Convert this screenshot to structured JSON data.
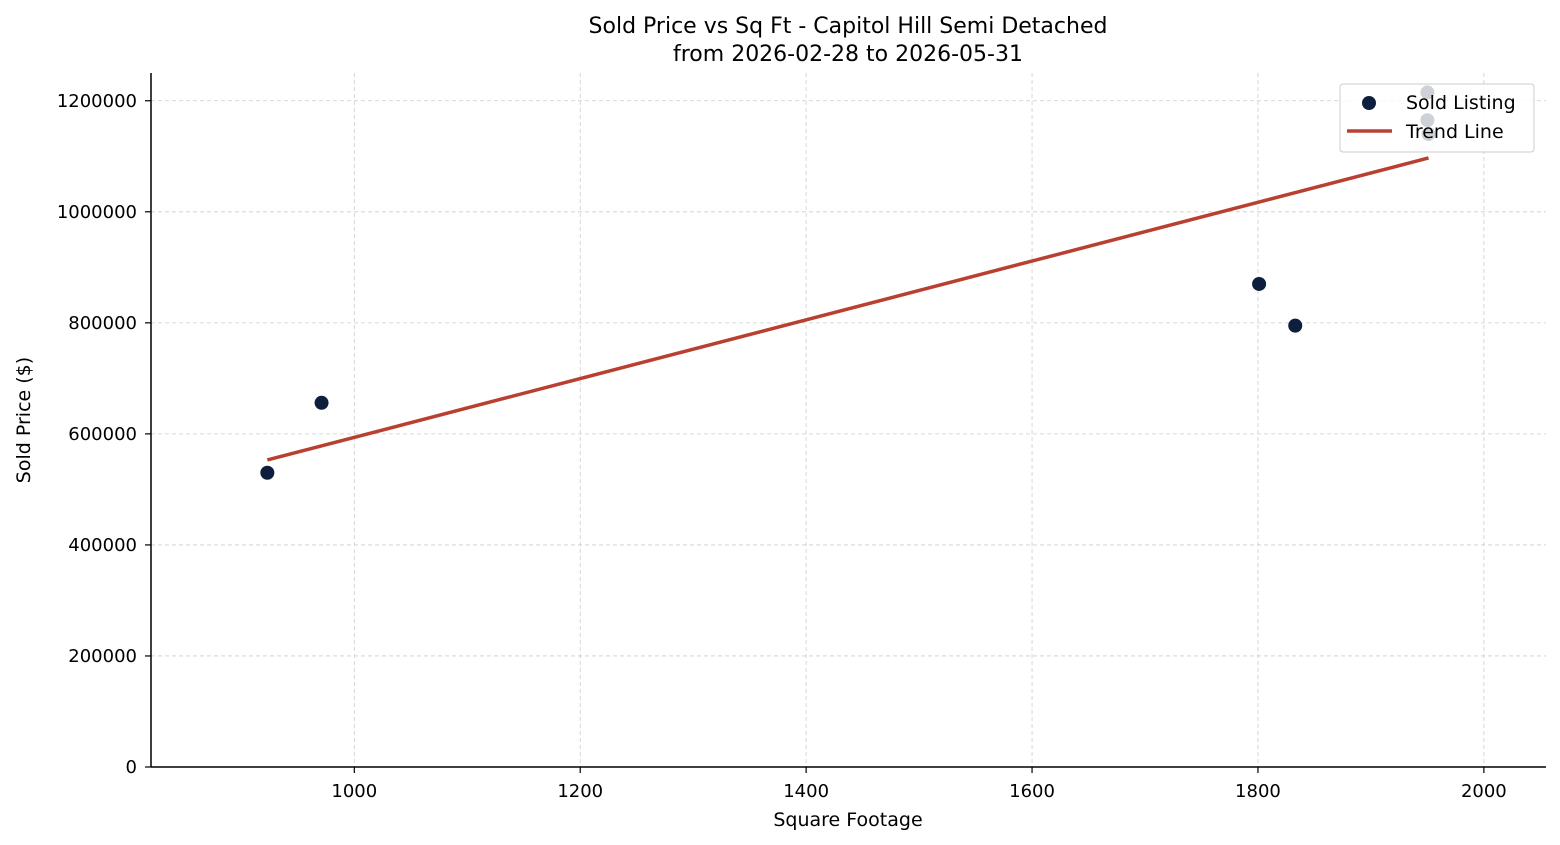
{
  "chart_data": {
    "type": "scatter",
    "title": "Sold Price vs Sq Ft - Capitol Hill Semi Detached",
    "subtitle": "from 2026-02-28 to 2026-05-31",
    "xlabel": "Square Footage",
    "ylabel": "Sold Price ($)",
    "xlim": [
      820,
      2055
    ],
    "ylim": [
      0,
      1250000
    ],
    "xticks": [
      1000,
      1200,
      1400,
      1600,
      1800,
      2000
    ],
    "xtick_labels": [
      "1000",
      "1200",
      "1400",
      "1600",
      "1800",
      "2000"
    ],
    "yticks": [
      0,
      200000,
      400000,
      600000,
      800000,
      1000000,
      1200000
    ],
    "ytick_labels": [
      "0",
      "200000",
      "400000",
      "600000",
      "800000",
      "1000000",
      "1200000"
    ],
    "grid": true,
    "legend_position": "top-right",
    "series": [
      {
        "name": "Sold Listing",
        "kind": "scatter",
        "color": "#0d1f3c",
        "points": [
          {
            "x": 923,
            "y": 530000
          },
          {
            "x": 971,
            "y": 656000
          },
          {
            "x": 1801,
            "y": 870000
          },
          {
            "x": 1833,
            "y": 795000
          },
          {
            "x": 1950,
            "y": 1215000
          },
          {
            "x": 1950,
            "y": 1165000
          },
          {
            "x": 1951,
            "y": 1140000
          }
        ]
      },
      {
        "name": "Trend Line",
        "kind": "line",
        "color": "#b94030",
        "points": [
          {
            "x": 923,
            "y": 553000
          },
          {
            "x": 1951,
            "y": 1097000
          }
        ]
      }
    ]
  }
}
